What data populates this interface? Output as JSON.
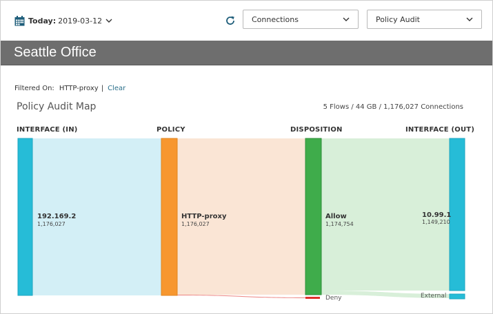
{
  "toolbar": {
    "date_label": "Today:",
    "date_value": "2019-03-12",
    "view_select": "Connections",
    "report_select": "Policy Audit"
  },
  "title": "Seattle Office",
  "filter": {
    "label": "Filtered On:",
    "value": "HTTP-proxy",
    "separator": "|",
    "clear_label": "Clear"
  },
  "map": {
    "title": "Policy Audit Map",
    "summary": "5 Flows / 44 GB / 1,176,027 Connections"
  },
  "columns": {
    "interface_in": "INTERFACE (IN)",
    "policy": "POLICY",
    "disposition": "DISPOSITION",
    "interface_out": "INTERFACE (OUT)"
  },
  "nodes": {
    "in": {
      "name": "192.169.2",
      "count": "1,176,027"
    },
    "policy": {
      "name": "HTTP-proxy",
      "count": "1,176,027"
    },
    "allow": {
      "name": "Allow",
      "count": "1,174,754"
    },
    "deny": {
      "name": "Deny"
    },
    "out_main": {
      "name": "10.99.1",
      "count": "1,149,210"
    },
    "out_external": {
      "name": "External"
    }
  },
  "colors": {
    "interface": "#26bcd7",
    "interface_flow": "#d3eff6",
    "policy": "#f7972f",
    "policy_flow": "#fae5d5",
    "allow": "#3fac4b",
    "allow_flow": "#d8efd9",
    "deny": "#e0302c",
    "title_bar": "#6e6e6e",
    "accent_icon": "#1e5d7a"
  }
}
